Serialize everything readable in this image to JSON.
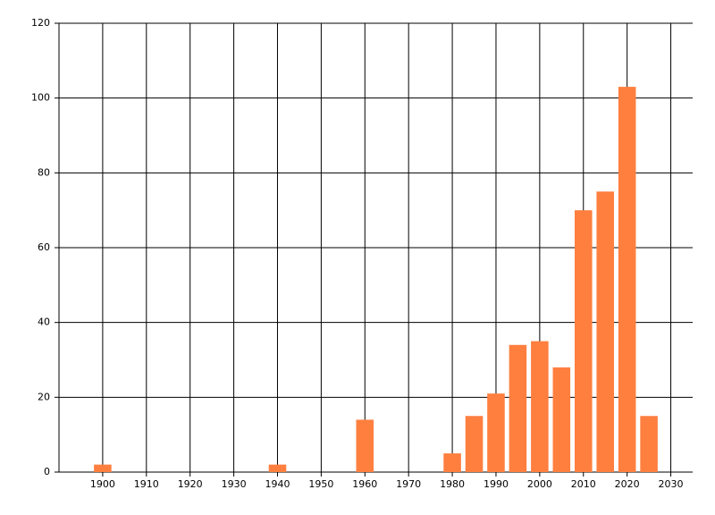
{
  "chart_data": {
    "type": "bar",
    "x": [
      1900,
      1940,
      1960,
      1980,
      1985,
      1990,
      1995,
      2000,
      2005,
      2010,
      2015,
      2020,
      2025
    ],
    "values": [
      2,
      2,
      14,
      5,
      15,
      21,
      34,
      35,
      28,
      70,
      75,
      103,
      15
    ],
    "color": "#ff7f3f",
    "xlim": [
      1890,
      2035
    ],
    "xticks": [
      1900,
      1910,
      1920,
      1930,
      1940,
      1950,
      1960,
      1970,
      1980,
      1990,
      2000,
      2010,
      2020,
      2030
    ],
    "ylim": [
      0,
      120
    ],
    "yticks": [
      0,
      20,
      40,
      60,
      80,
      100,
      120
    ],
    "grid": true
  }
}
